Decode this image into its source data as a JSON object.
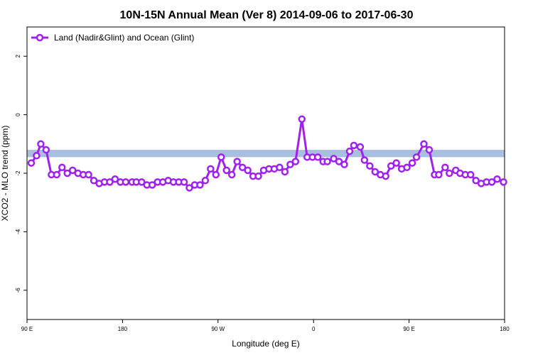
{
  "chart_data": {
    "type": "line",
    "title": "10N-15N Annual Mean (Ver 8)   2014-09-06 to 2017-06-30",
    "x_label": "Longitude (deg E)",
    "y_label": "XCO2 - MLO trend (ppm)",
    "xlim": [
      90,
      540
    ],
    "ylim": [
      -7,
      3
    ],
    "xticks": [
      {
        "value": 90,
        "label": "90 E"
      },
      180,
      {
        "value": 270,
        "label": "90 W"
      },
      {
        "value": 360,
        "label": "0"
      },
      {
        "value": 450,
        "label": "90 E"
      },
      {
        "value": 540,
        "label": "180"
      }
    ],
    "yticks": [
      -6,
      -4,
      -2,
      0,
      2
    ],
    "band": [
      -1.45,
      -1.2
    ],
    "band_color": "#a8bfe0",
    "legend_position": "top-left",
    "series": [
      {
        "name": "Land (Nadir&Glint) and Ocean (Glint)",
        "color": "#a020f0",
        "x": [
          94,
          99,
          103,
          108,
          113,
          118,
          123,
          128,
          133,
          138,
          143,
          148,
          153,
          158,
          163,
          168,
          173,
          178,
          183,
          189,
          193,
          198,
          203,
          208,
          213,
          218,
          223,
          228,
          233,
          238,
          243,
          248,
          253,
          258,
          263,
          268,
          273,
          278,
          283,
          288,
          293,
          298,
          303,
          308,
          313,
          318,
          323,
          328,
          333,
          338,
          343,
          349,
          354,
          359,
          364,
          369,
          373,
          379,
          384,
          389,
          394,
          398,
          404,
          408,
          413,
          418,
          423,
          428,
          433,
          438,
          443,
          448,
          453,
          457,
          464,
          469,
          474,
          478,
          484,
          488,
          494,
          498,
          503,
          508,
          513,
          518,
          523,
          528,
          533,
          539
        ],
        "values": [
          -1.65,
          -1.4,
          -1.0,
          -1.2,
          -2.05,
          -2.05,
          -1.8,
          -2.0,
          -1.9,
          -2.0,
          -2.05,
          -2.05,
          -2.25,
          -2.35,
          -2.3,
          -2.3,
          -2.2,
          -2.3,
          -2.3,
          -2.3,
          -2.3,
          -2.3,
          -2.4,
          -2.4,
          -2.3,
          -2.3,
          -2.25,
          -2.3,
          -2.3,
          -2.3,
          -2.5,
          -2.4,
          -2.4,
          -2.25,
          -1.85,
          -2.05,
          -1.45,
          -1.9,
          -2.05,
          -1.6,
          -1.8,
          -1.9,
          -2.1,
          -2.1,
          -1.9,
          -1.85,
          -1.85,
          -1.8,
          -1.95,
          -1.7,
          -1.6,
          -0.15,
          -1.45,
          -1.45,
          -1.45,
          -1.6,
          -1.6,
          -1.5,
          -1.6,
          -1.7,
          -1.25,
          -1.05,
          -1.1,
          -1.55,
          -1.75,
          -1.95,
          -2.05,
          -2.1,
          -1.75,
          -1.65,
          -1.85,
          -1.8,
          -1.65,
          -1.45,
          -1.0,
          -1.2,
          -2.05,
          -2.05,
          -1.8,
          -2.0,
          -1.9,
          -2.0,
          -2.05,
          -2.05,
          -2.25,
          -2.35,
          -2.3,
          -2.3,
          -2.2,
          -2.3
        ]
      }
    ]
  }
}
